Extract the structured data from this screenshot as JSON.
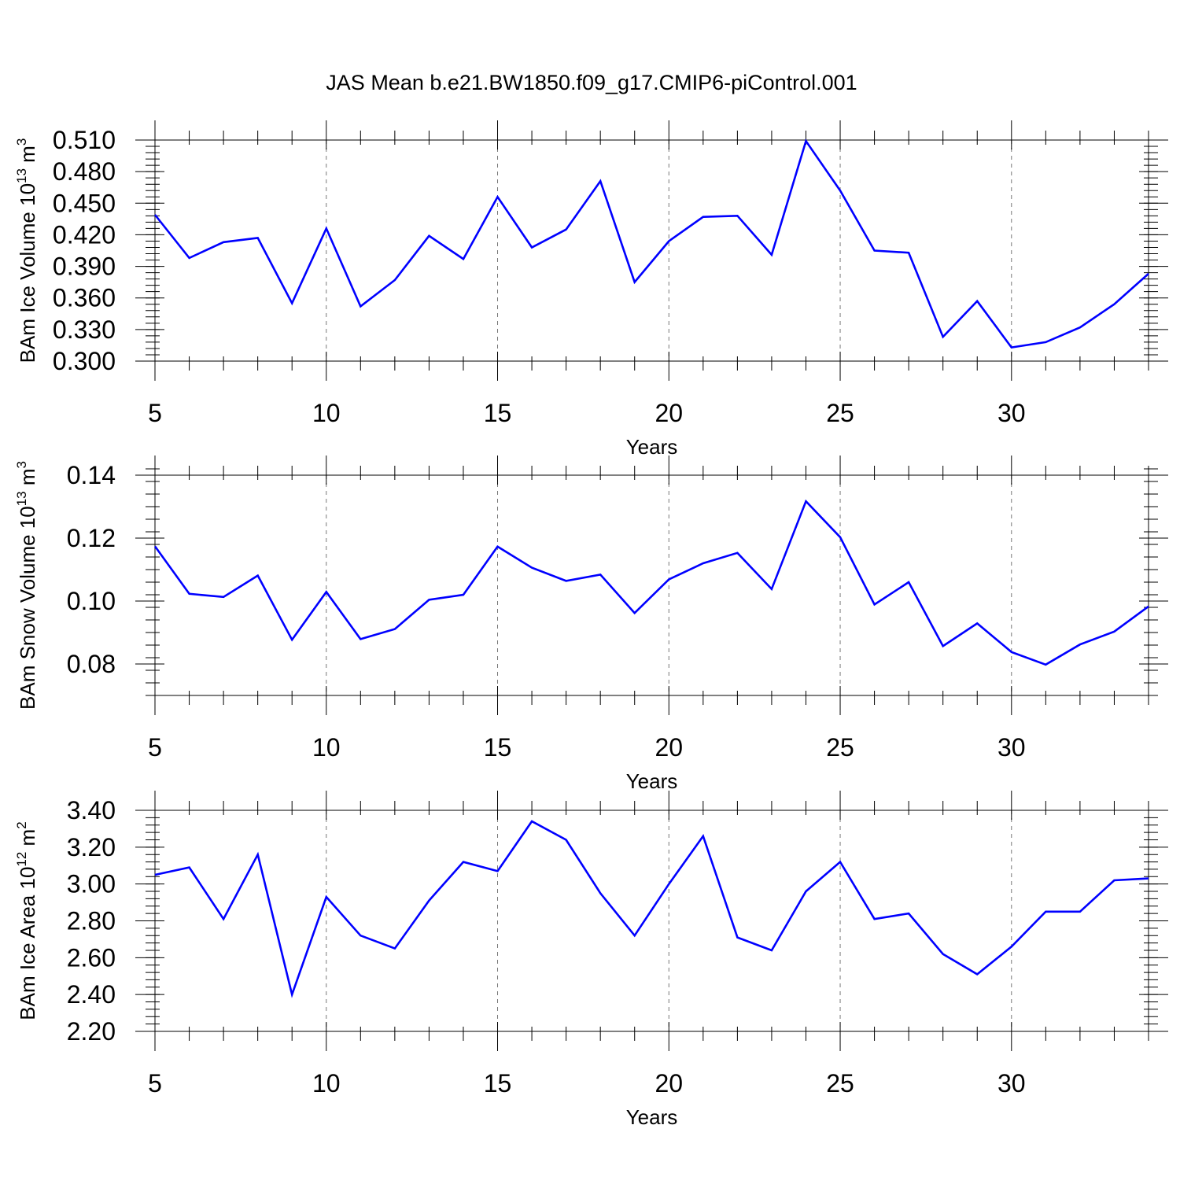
{
  "figure": {
    "title": "JAS Mean b.e21.BW1850.f09_g17.CMIP6-piControl.001"
  },
  "style": {
    "line_color": "#0000ff",
    "axis_color": "#000000",
    "grid_color": "#777777"
  },
  "chart_data": [
    {
      "type": "line",
      "id": "ice-volume",
      "xlabel": "Years",
      "ylabel_main": "BAm Ice Volume 10",
      "ylabel_exp": "13",
      "ylabel_unit": " m",
      "ylabel_unit_exp": "3",
      "xlim": [
        5,
        34
      ],
      "ylim": [
        0.3,
        0.51
      ],
      "xticks": [
        5,
        10,
        15,
        20,
        25,
        30
      ],
      "xtick_labels": [
        "5",
        "10",
        "15",
        "20",
        "25",
        "30"
      ],
      "yticks": [
        0.3,
        0.33,
        0.36,
        0.39,
        0.42,
        0.45,
        0.48,
        0.51
      ],
      "ytick_labels": [
        "0.300",
        "0.330",
        "0.360",
        "0.390",
        "0.420",
        "0.450",
        "0.480",
        "0.510"
      ],
      "yminor_step": 0.006,
      "grid": "x-dashed",
      "x": [
        5,
        6,
        7,
        8,
        9,
        10,
        11,
        12,
        13,
        14,
        15,
        16,
        17,
        18,
        19,
        20,
        21,
        22,
        23,
        24,
        25,
        26,
        27,
        28,
        29,
        30,
        31,
        32,
        33,
        34
      ],
      "values": [
        0.439,
        0.398,
        0.413,
        0.417,
        0.355,
        0.426,
        0.352,
        0.377,
        0.419,
        0.397,
        0.456,
        0.408,
        0.425,
        0.471,
        0.375,
        0.414,
        0.437,
        0.438,
        0.401,
        0.509,
        0.462,
        0.405,
        0.403,
        0.323,
        0.357,
        0.313,
        0.318,
        0.332,
        0.354,
        0.383
      ]
    },
    {
      "type": "line",
      "id": "snow-volume",
      "xlabel": "Years",
      "ylabel_main": "BAm Snow Volume 10",
      "ylabel_exp": "13",
      "ylabel_unit": " m",
      "ylabel_unit_exp": "3",
      "xlim": [
        5,
        34
      ],
      "ylim": [
        0.07,
        0.14
      ],
      "xticks": [
        5,
        10,
        15,
        20,
        25,
        30
      ],
      "xtick_labels": [
        "5",
        "10",
        "15",
        "20",
        "25",
        "30"
      ],
      "yticks": [
        0.08,
        0.1,
        0.12,
        0.14
      ],
      "ytick_labels": [
        "0.08",
        "0.10",
        "0.12",
        "0.14"
      ],
      "yminor_step": 0.004,
      "grid": "x-dashed",
      "x": [
        5,
        6,
        7,
        8,
        9,
        10,
        11,
        12,
        13,
        14,
        15,
        16,
        17,
        18,
        19,
        20,
        21,
        22,
        23,
        24,
        25,
        26,
        27,
        28,
        29,
        30,
        31,
        32,
        33,
        34
      ],
      "values": [
        0.1174,
        0.1023,
        0.1013,
        0.1081,
        0.0877,
        0.1029,
        0.0879,
        0.0911,
        0.1004,
        0.102,
        0.1173,
        0.1106,
        0.1064,
        0.1084,
        0.0962,
        0.1069,
        0.112,
        0.1153,
        0.1038,
        0.1317,
        0.1203,
        0.0989,
        0.106,
        0.0857,
        0.0929,
        0.0838,
        0.0798,
        0.0862,
        0.0903,
        0.0983
      ]
    },
    {
      "type": "line",
      "id": "ice-area",
      "xlabel": "Years",
      "ylabel_main": "BAm Ice Area 10",
      "ylabel_exp": "12",
      "ylabel_unit": " m",
      "ylabel_unit_exp": "2",
      "xlim": [
        5,
        34
      ],
      "ylim": [
        2.2,
        3.4
      ],
      "xticks": [
        5,
        10,
        15,
        20,
        25,
        30
      ],
      "xtick_labels": [
        "5",
        "10",
        "15",
        "20",
        "25",
        "30"
      ],
      "yticks": [
        2.2,
        2.4,
        2.6,
        2.8,
        3.0,
        3.2,
        3.4
      ],
      "ytick_labels": [
        "2.20",
        "2.40",
        "2.60",
        "2.80",
        "3.00",
        "3.20",
        "3.40"
      ],
      "yminor_step": 0.04,
      "grid": "x-dashed",
      "x": [
        5,
        6,
        7,
        8,
        9,
        10,
        11,
        12,
        13,
        14,
        15,
        16,
        17,
        18,
        19,
        20,
        21,
        22,
        23,
        24,
        25,
        26,
        27,
        28,
        29,
        30,
        31,
        32,
        33,
        34
      ],
      "values": [
        3.05,
        3.09,
        2.81,
        3.16,
        2.4,
        2.93,
        2.72,
        2.65,
        2.91,
        3.12,
        3.07,
        3.34,
        3.24,
        2.95,
        2.72,
        3.0,
        3.26,
        2.71,
        2.64,
        2.96,
        3.12,
        2.81,
        2.84,
        2.62,
        2.51,
        2.66,
        2.85,
        2.85,
        3.02,
        3.03
      ]
    }
  ]
}
